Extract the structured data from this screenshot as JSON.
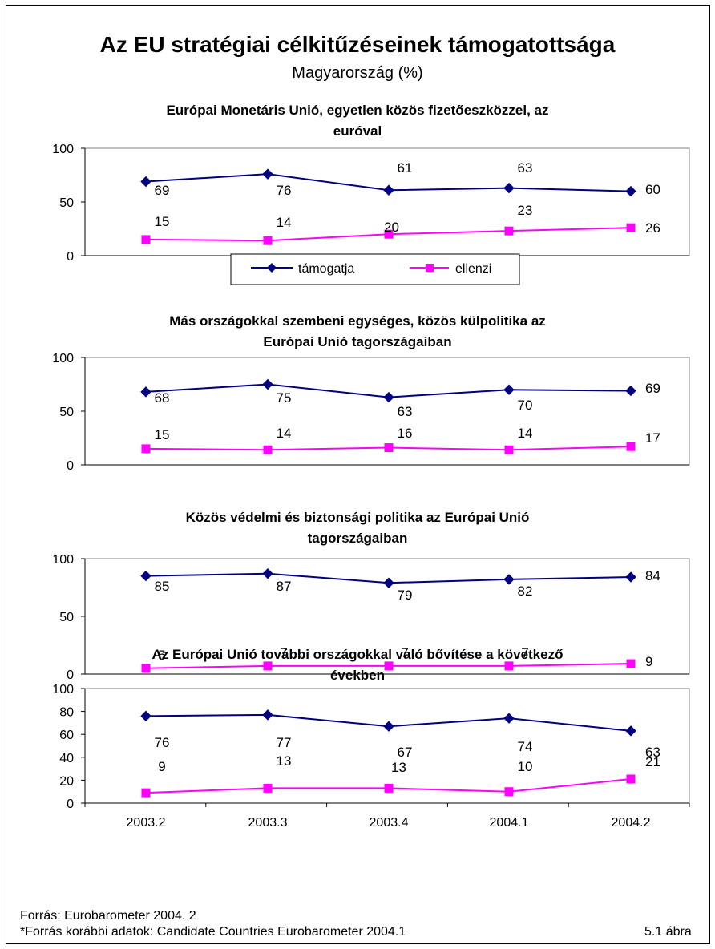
{
  "main_title": "Az EU stratégiai célkitűzéseinek támogatottsága",
  "main_subtitle": "Magyarország (%)",
  "legend": {
    "series_1": "támogatja",
    "series_2": "ellenzi"
  },
  "colors": {
    "series_1": "#000080",
    "series_2": "#ff00ff"
  },
  "footer": {
    "source": "Forrás: Eurobarometer 2004. 2",
    "source_earlier": "*Forrás korábbi adatok: Candidate Countries Eurobarometer 2004.1",
    "figure_number": "5.1 ábra"
  },
  "chart_data": [
    {
      "type": "line",
      "title": "Európai Monetáris Unió, egyetlen közös fizetőeszközzel, az euróval",
      "categories": [
        "2003.2",
        "2003.3",
        "2003.4",
        "2004.1",
        "2004.2"
      ],
      "ylim": [
        0,
        100
      ],
      "yticks": [
        0,
        50,
        100
      ],
      "grid": false,
      "legend": "bottom",
      "series": [
        {
          "name": "támogatja",
          "values": [
            69,
            76,
            61,
            63,
            60
          ],
          "marker": "diamond"
        },
        {
          "name": "ellenzi",
          "values": [
            15,
            14,
            20,
            23,
            26
          ],
          "marker": "square"
        }
      ]
    },
    {
      "type": "line",
      "title": "Más országokkal szembeni egységes, közös külpolitika az Európai Unió tagországaiban",
      "categories": [
        "2003.2",
        "2003.3",
        "2003.4",
        "2004.1",
        "2004.2"
      ],
      "ylim": [
        0,
        100
      ],
      "yticks": [
        0,
        50,
        100
      ],
      "grid": false,
      "series": [
        {
          "name": "támogatja",
          "values": [
            68,
            75,
            63,
            70,
            69
          ],
          "marker": "diamond"
        },
        {
          "name": "ellenzi",
          "values": [
            15,
            14,
            16,
            14,
            17
          ],
          "marker": "square"
        }
      ]
    },
    {
      "type": "line",
      "title": "Közös védelmi és biztonsági politika az Európai Unió tagországaiban",
      "categories": [
        "2003.2",
        "2003.3",
        "2003.4",
        "2004.1",
        "2004.2"
      ],
      "ylim": [
        0,
        100
      ],
      "yticks": [
        0,
        50,
        100
      ],
      "grid": false,
      "series": [
        {
          "name": "támogatja",
          "values": [
            85,
            87,
            79,
            82,
            84
          ],
          "marker": "diamond"
        },
        {
          "name": "ellenzi",
          "values": [
            5,
            7,
            7,
            7,
            9
          ],
          "marker": "square"
        }
      ]
    },
    {
      "type": "line",
      "title": "Az Európai Unió további országokkal való bővítése a következő években",
      "categories": [
        "2003.2",
        "2003.3",
        "2003.4",
        "2004.1",
        "2004.2"
      ],
      "ylim": [
        0,
        100
      ],
      "yticks": [
        0,
        20,
        40,
        60,
        80,
        100
      ],
      "grid": false,
      "series": [
        {
          "name": "támogatja",
          "values": [
            76,
            77,
            67,
            74,
            63
          ],
          "marker": "diamond"
        },
        {
          "name": "ellenzi",
          "values": [
            9,
            13,
            13,
            10,
            21
          ],
          "marker": "square"
        }
      ]
    }
  ]
}
